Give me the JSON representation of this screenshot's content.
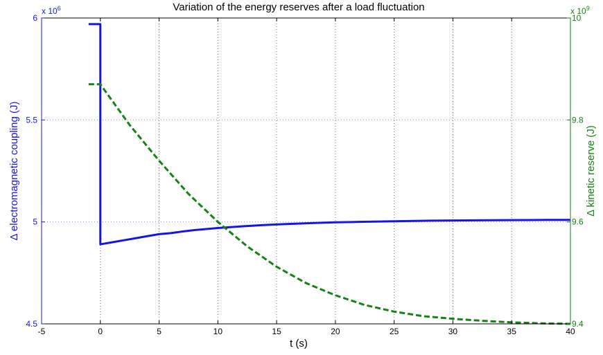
{
  "chart_data": {
    "type": "line",
    "title": "Variation of the energy reserves after a load fluctuation",
    "xlabel": "t (s)",
    "xlim": [
      -5,
      40
    ],
    "xticks": [
      -5,
      0,
      5,
      10,
      15,
      20,
      25,
      30,
      35,
      40
    ],
    "grid": true,
    "left_axis": {
      "label": "Δ electromagnetic coupling (J)",
      "exponent_label": "x 10",
      "exponent_power": "6",
      "ylim": [
        4.5,
        6
      ],
      "yticks": [
        4.5,
        5,
        5.5,
        6
      ],
      "color": "#1515e6"
    },
    "right_axis": {
      "label": "Δ kinetic reserve (J)",
      "exponent_label": "x 10",
      "exponent_power": "9",
      "ylim": [
        9.4,
        10
      ],
      "yticks": [
        9.4,
        9.6,
        9.8,
        10
      ],
      "color": "#148214"
    },
    "series": [
      {
        "axis": "left",
        "color": "#1515e6",
        "style": "solid",
        "points": [
          [
            -1,
            5.97
          ],
          [
            0,
            5.97
          ],
          [
            0,
            4.89
          ],
          [
            1,
            4.9
          ],
          [
            2,
            4.91
          ],
          [
            3,
            4.92
          ],
          [
            4,
            4.93
          ],
          [
            5,
            4.94
          ],
          [
            6,
            4.945
          ],
          [
            7,
            4.953
          ],
          [
            8,
            4.96
          ],
          [
            9,
            4.965
          ],
          [
            10,
            4.97
          ],
          [
            12,
            4.978
          ],
          [
            14,
            4.985
          ],
          [
            16,
            4.99
          ],
          [
            18,
            4.994
          ],
          [
            20,
            4.998
          ],
          [
            22,
            5.0
          ],
          [
            25,
            5.003
          ],
          [
            28,
            5.006
          ],
          [
            30,
            5.007
          ],
          [
            33,
            5.008
          ],
          [
            36,
            5.009
          ],
          [
            38,
            5.01
          ],
          [
            40,
            5.01
          ]
        ]
      },
      {
        "axis": "right",
        "color": "#148214",
        "style": "dashed",
        "points": [
          [
            -1,
            9.87
          ],
          [
            0,
            9.87
          ],
          [
            2.5,
            9.79
          ],
          [
            5,
            9.72
          ],
          [
            7.5,
            9.655
          ],
          [
            10,
            9.6
          ],
          [
            12.5,
            9.552
          ],
          [
            15,
            9.512
          ],
          [
            17.5,
            9.48
          ],
          [
            20,
            9.456
          ],
          [
            22.5,
            9.437
          ],
          [
            25,
            9.424
          ],
          [
            27.5,
            9.415
          ],
          [
            30,
            9.41
          ],
          [
            32.5,
            9.406
          ],
          [
            35,
            9.403
          ],
          [
            37.5,
            9.401
          ],
          [
            40,
            9.4
          ]
        ]
      }
    ]
  }
}
